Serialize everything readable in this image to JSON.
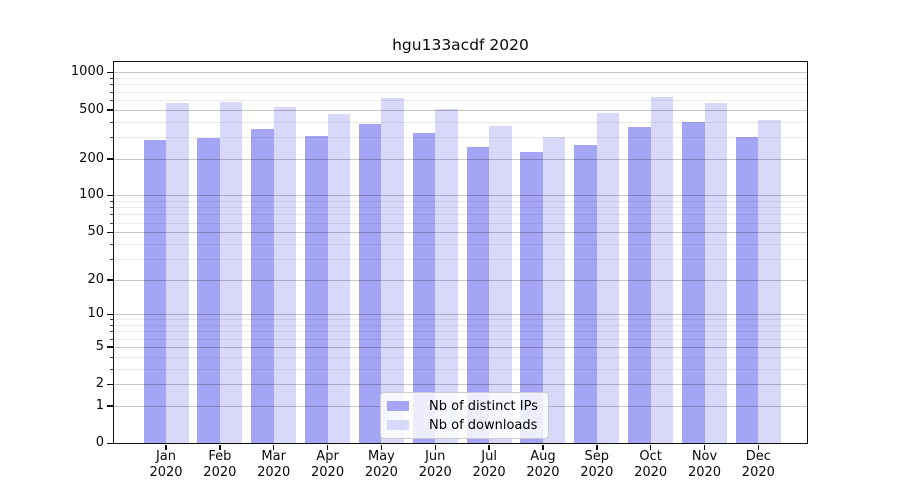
{
  "chart_data": {
    "type": "bar",
    "title": "hgu133acdf 2020",
    "categories": [
      "Jan",
      "Feb",
      "Mar",
      "Apr",
      "May",
      "Jun",
      "Jul",
      "Aug",
      "Sep",
      "Oct",
      "Nov",
      "Dec"
    ],
    "year": "2020",
    "series": [
      {
        "name": "Nb of distinct IPs",
        "color": "#a5a5f5",
        "values": [
          285,
          295,
          345,
          305,
          382,
          320,
          250,
          228,
          260,
          358,
          398,
          300
        ]
      },
      {
        "name": "Nb of downloads",
        "color": "#d8d8fa",
        "values": [
          570,
          580,
          525,
          460,
          615,
          505,
          370,
          297,
          465,
          635,
          570,
          415
        ]
      }
    ],
    "xlabel": "",
    "ylabel": "",
    "y_scale": "log1p",
    "ylim": [
      0,
      1215
    ],
    "y_major_ticks": [
      0,
      1,
      2,
      5,
      10,
      20,
      50,
      100,
      200,
      500,
      1000
    ],
    "y_minor_ticks": [
      3,
      4,
      6,
      7,
      8,
      9,
      30,
      40,
      60,
      70,
      80,
      90,
      300,
      400,
      600,
      700,
      800,
      900
    ],
    "grid": "on",
    "legend_position": "lower center",
    "colors": {
      "major_grid": "rgba(0,0,0,0.22)",
      "minor_grid": "rgba(0,0,0,0.08)",
      "spine": "#111111",
      "background": "#ffffff"
    }
  }
}
